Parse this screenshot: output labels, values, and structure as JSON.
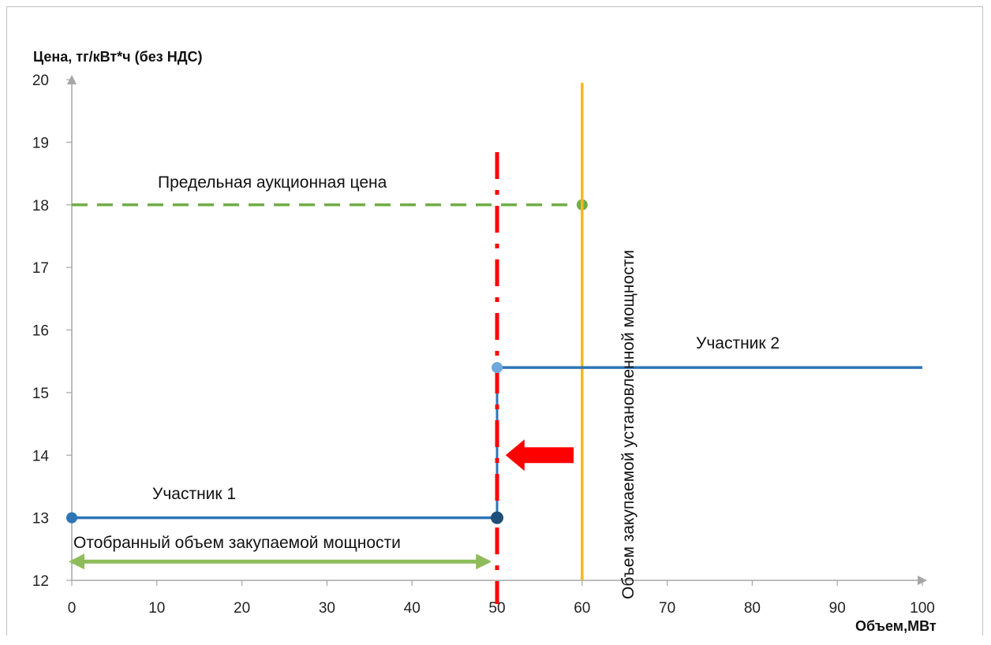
{
  "chart_data": {
    "type": "line",
    "title": "",
    "ylabel": "Цена, тг/кВт*ч (без НДС)",
    "xlabel": "Объем,МВт",
    "xlim": [
      0,
      100
    ],
    "ylim": [
      12,
      20
    ],
    "x_ticks": [
      0,
      10,
      20,
      30,
      40,
      50,
      60,
      70,
      80,
      90,
      100
    ],
    "y_ticks": [
      12,
      13,
      14,
      15,
      16,
      17,
      18,
      19,
      20
    ],
    "grid": false,
    "series": [
      {
        "name": "Участник 1",
        "color": "#2e75b6",
        "points": [
          [
            0,
            13
          ],
          [
            50,
            13
          ]
        ]
      },
      {
        "name": "Участник 2",
        "color": "#2e75b6",
        "points": [
          [
            50,
            15.4
          ],
          [
            100,
            15.4
          ]
        ]
      },
      {
        "name": "Предельная аукционная цена",
        "color": "#70ad47",
        "style": "dashed",
        "points": [
          [
            0,
            18
          ],
          [
            60,
            18
          ]
        ]
      }
    ],
    "step_connector": {
      "color": "#2e75b6",
      "points": [
        [
          50,
          13
        ],
        [
          50,
          15.4
        ]
      ]
    },
    "vertical_lines": [
      {
        "x": 60,
        "color": "#f2b826",
        "label": "Объем закупаемой установленной мощности"
      },
      {
        "x": 50,
        "color": "#ff0000",
        "style": "dash-dot"
      }
    ],
    "annotations": {
      "range_label": "Отобранный объем закупаемой мощности",
      "range": [
        0,
        49
      ],
      "range_y": 12.3,
      "range_color": "#8fbc5a",
      "arrow_color": "#ff0000",
      "arrow_from": [
        59,
        14
      ],
      "arrow_to": [
        51,
        14
      ]
    }
  }
}
